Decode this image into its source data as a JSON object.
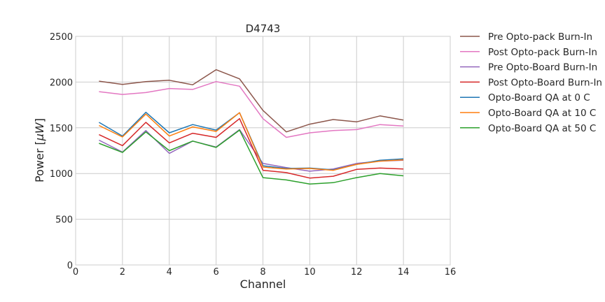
{
  "chart_data": {
    "type": "line",
    "title": "D4743",
    "xlabel": "Channel",
    "ylabel": "Power [",
    "ylabel_unit": "μW",
    "ylabel_close": "]",
    "xlim": [
      0,
      16
    ],
    "ylim": [
      0,
      2500
    ],
    "xticks": [
      0,
      2,
      4,
      6,
      8,
      10,
      12,
      14,
      16
    ],
    "yticks": [
      0,
      500,
      1000,
      1500,
      2000,
      2500
    ],
    "grid": true,
    "legend_position": "outside-right",
    "x": [
      1,
      2,
      3,
      4,
      5,
      6,
      7,
      8,
      9,
      10,
      11,
      12,
      13,
      14
    ],
    "series": [
      {
        "name": "Pre Opto-pack Burn-In",
        "color": "#8c564b",
        "values": [
          2010,
          1975,
          2005,
          2020,
          1970,
          2135,
          2035,
          1690,
          1455,
          1540,
          1590,
          1565,
          1630,
          1585
        ]
      },
      {
        "name": "Post Opto-pack Burn-In",
        "color": "#e377c2",
        "values": [
          1895,
          1865,
          1885,
          1930,
          1920,
          2005,
          1955,
          1600,
          1395,
          1445,
          1470,
          1480,
          1535,
          1520
        ]
      },
      {
        "name": "Pre Opto-Board Burn-In",
        "color": "#9467bd",
        "values": [
          1365,
          1235,
          1470,
          1220,
          1355,
          1290,
          1480,
          1110,
          1065,
          1025,
          1050,
          1110,
          1135,
          1145
        ]
      },
      {
        "name": "Post Opto-Board Burn-In",
        "color": "#d62728",
        "values": [
          1425,
          1305,
          1560,
          1335,
          1440,
          1395,
          1600,
          1035,
          1010,
          950,
          970,
          1045,
          1060,
          1050
        ]
      },
      {
        "name": "Opto-Board QA at 0 C",
        "color": "#1f77b4",
        "values": [
          1560,
          1410,
          1670,
          1445,
          1535,
          1475,
          1665,
          1085,
          1055,
          1060,
          1040,
          1100,
          1145,
          1160
        ]
      },
      {
        "name": "Opto-Board QA at 10 C",
        "color": "#ff7f0e",
        "values": [
          1525,
          1400,
          1650,
          1410,
          1510,
          1460,
          1665,
          1070,
          1050,
          1055,
          1035,
          1100,
          1135,
          1150
        ]
      },
      {
        "name": "Opto-Board QA at 50 C",
        "color": "#2ca02c",
        "values": [
          1330,
          1230,
          1455,
          1250,
          1355,
          1285,
          1475,
          955,
          930,
          885,
          900,
          955,
          1000,
          975
        ]
      }
    ]
  }
}
